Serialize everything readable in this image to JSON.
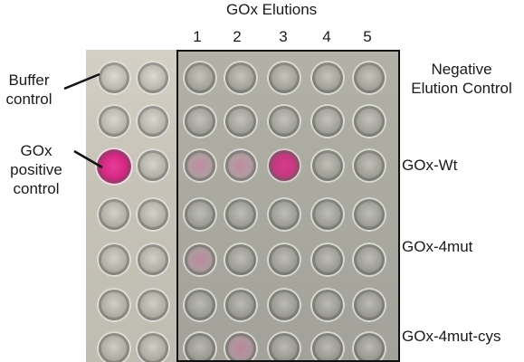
{
  "figure": {
    "header": "GOx Elutions",
    "columns": [
      "1",
      "2",
      "3",
      "4",
      "5"
    ],
    "left_labels": {
      "buffer": [
        "Buffer",
        "control"
      ],
      "positive": [
        "GOx",
        "positive",
        "control"
      ]
    },
    "row_labels": {
      "negative": [
        "Negative",
        "Elution Control"
      ],
      "wt": "GOx-Wt",
      "mut4": "GOx-4mut",
      "mut4cys": "GOx-4mut-cys"
    }
  }
}
